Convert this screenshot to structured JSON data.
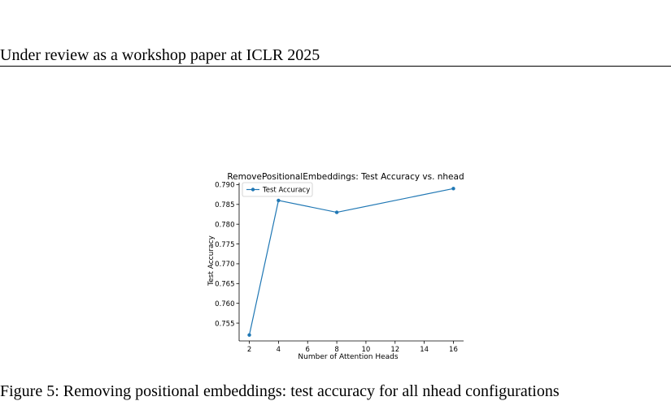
{
  "header": {
    "text": "Under review as a workshop paper at ICLR 2025"
  },
  "figure": {
    "caption_fragment": "Figure 5: Removing positional embeddings: test accuracy for all nhead configurations"
  },
  "chart_data": {
    "type": "line",
    "title": "RemovePositionalEmbeddings: Test Accuracy vs. nhead",
    "xlabel": "Number of Attention Heads",
    "ylabel": "Test Accuracy",
    "xlim": [
      1.3,
      16.7
    ],
    "ylim": [
      0.7505,
      0.7905
    ],
    "xticks": [
      2,
      4,
      6,
      8,
      10,
      12,
      14,
      16
    ],
    "yticks": [
      0.755,
      0.76,
      0.765,
      0.77,
      0.775,
      0.78,
      0.785,
      0.79
    ],
    "ytick_format_decimals": 3,
    "grid": false,
    "legend": "upper left",
    "series": [
      {
        "name": "Test Accuracy",
        "color": "#1f77b4",
        "marker": "circle",
        "x": [
          2,
          4,
          8,
          16
        ],
        "y": [
          0.752,
          0.786,
          0.783,
          0.789
        ]
      }
    ]
  }
}
